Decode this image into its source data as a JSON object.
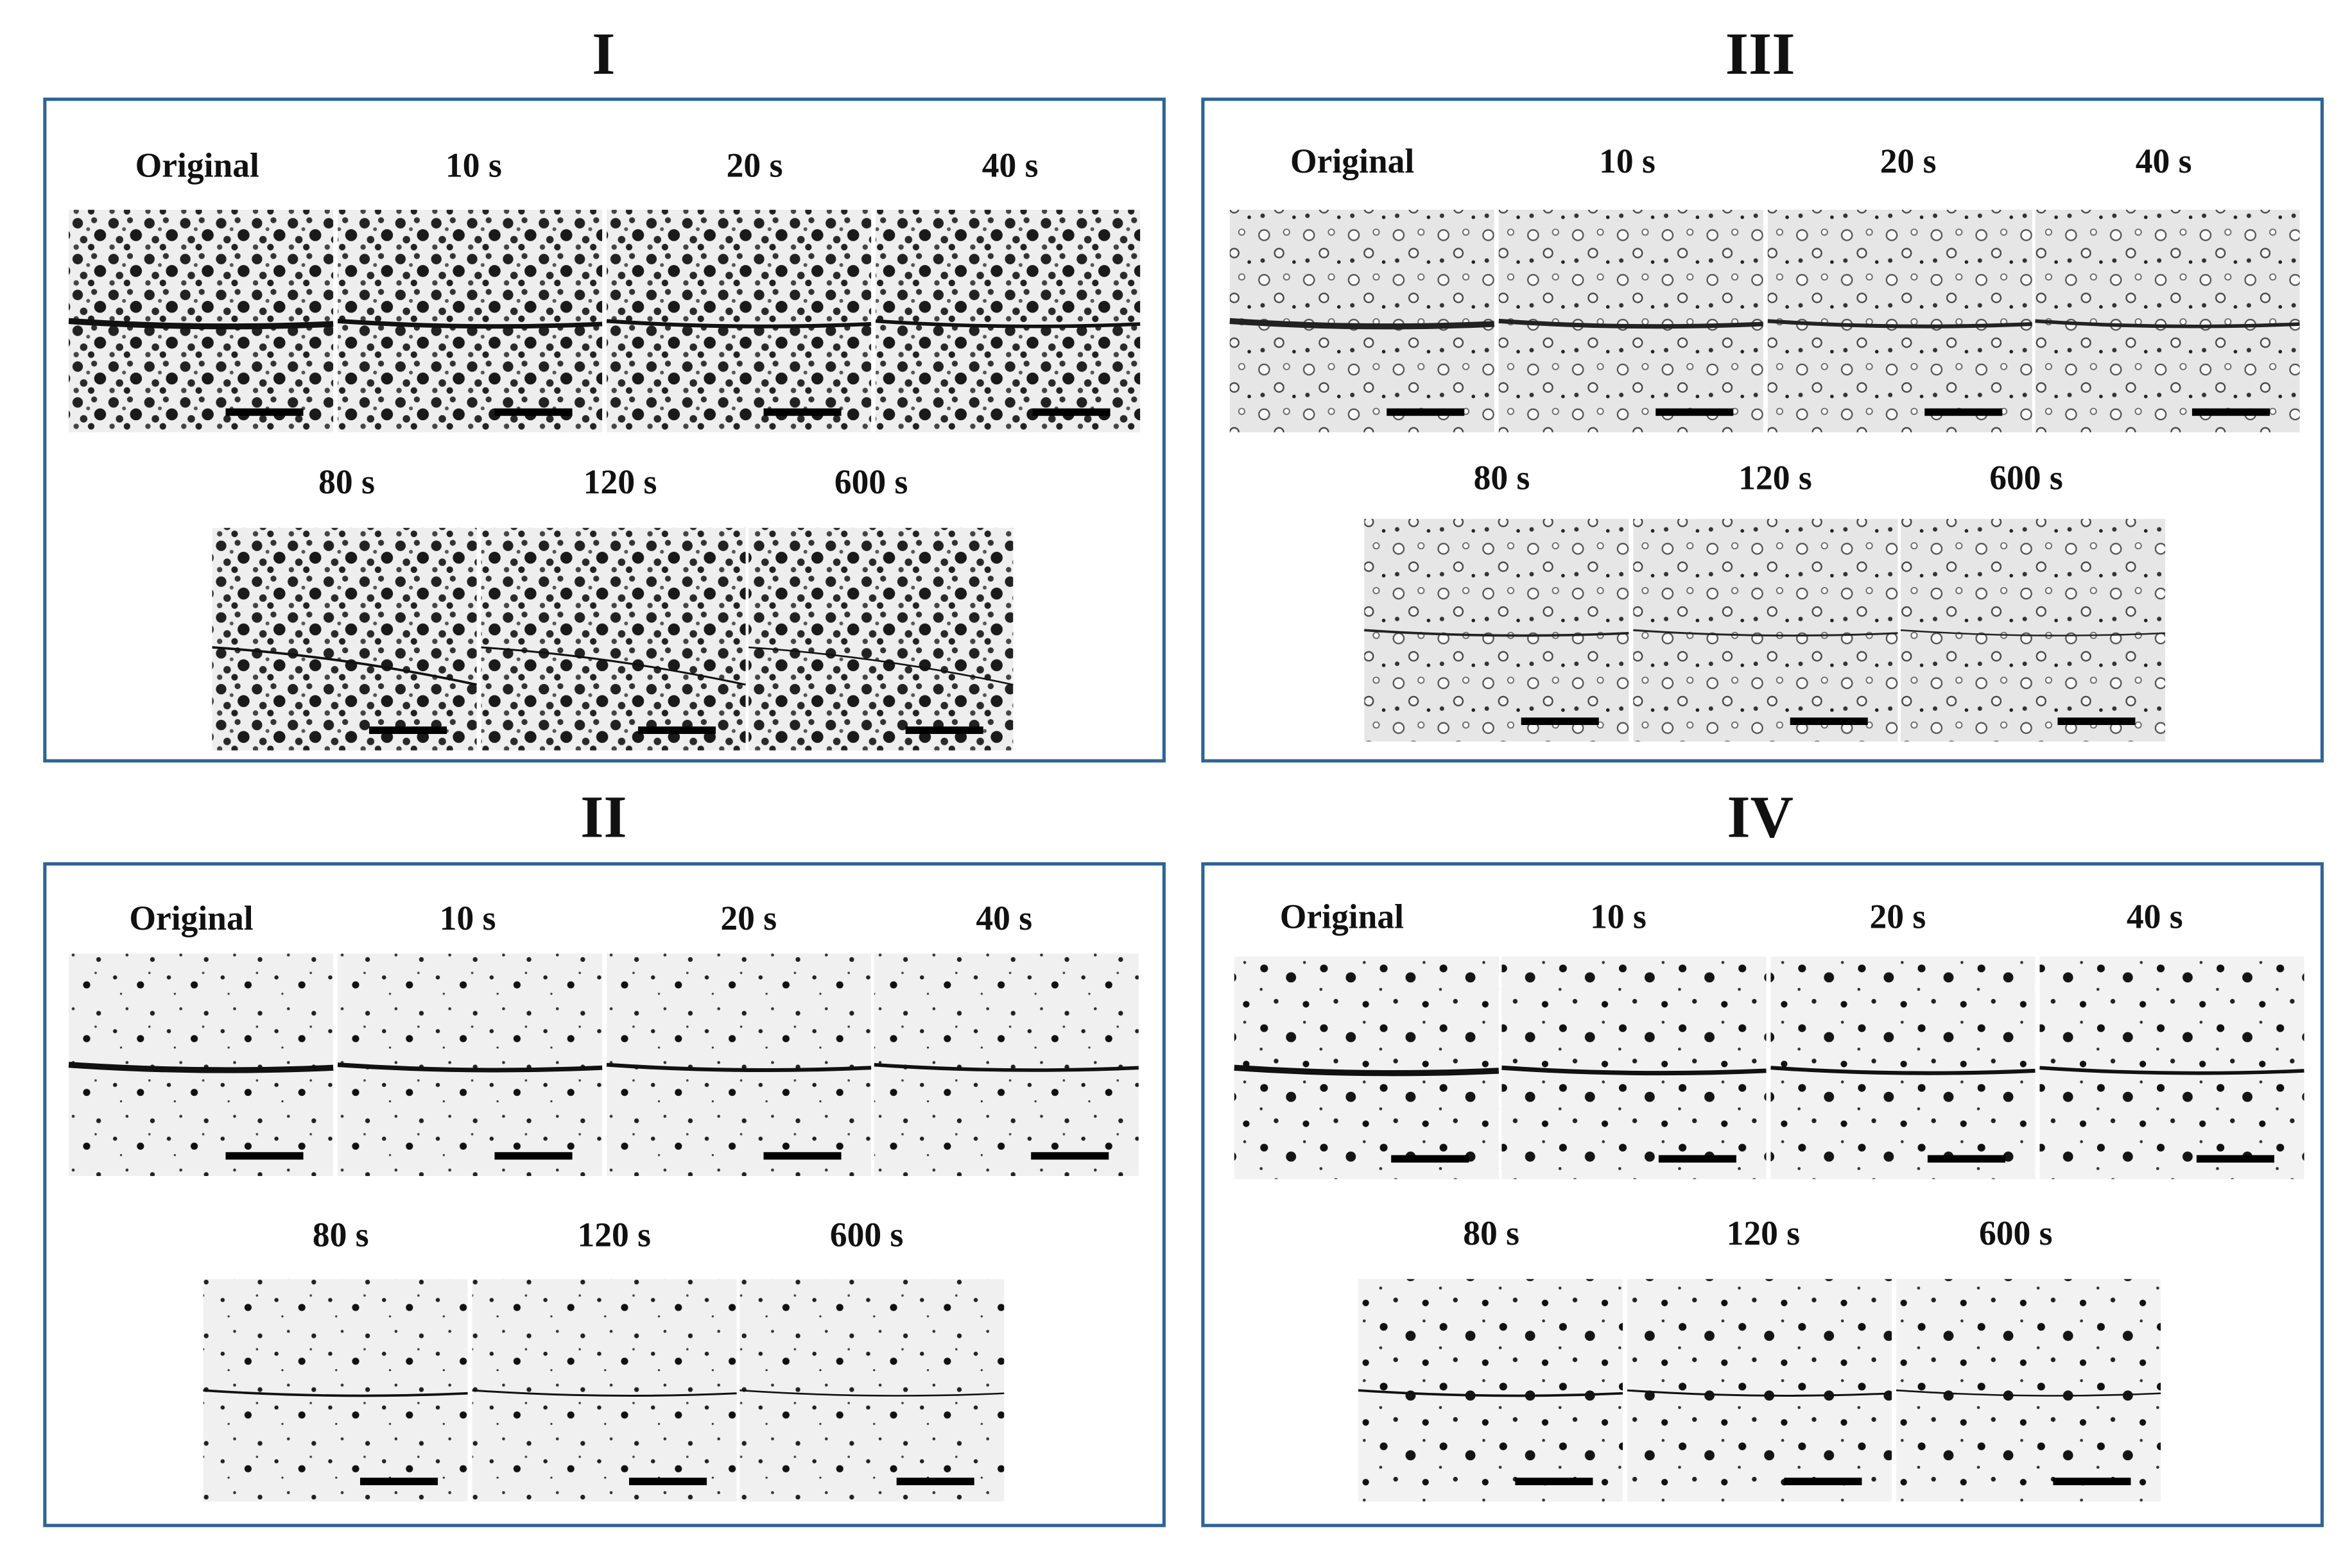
{
  "panels": [
    {
      "title": "I",
      "labels": [
        "Original",
        "10 s",
        "20 s",
        "40 s",
        "80 s",
        "120 s",
        "600 s"
      ]
    },
    {
      "title": "III",
      "labels": [
        "Original",
        "10 s",
        "20 s",
        "40 s",
        "80 s",
        "120 s",
        "600 s"
      ]
    },
    {
      "title": "II",
      "labels": [
        "Original",
        "10 s",
        "20 s",
        "40 s",
        "80 s",
        "120 s",
        "600 s"
      ]
    },
    {
      "title": "IV",
      "labels": [
        "Original",
        "10 s",
        "20 s",
        "40 s",
        "80 s",
        "120 s",
        "600 s"
      ]
    }
  ]
}
